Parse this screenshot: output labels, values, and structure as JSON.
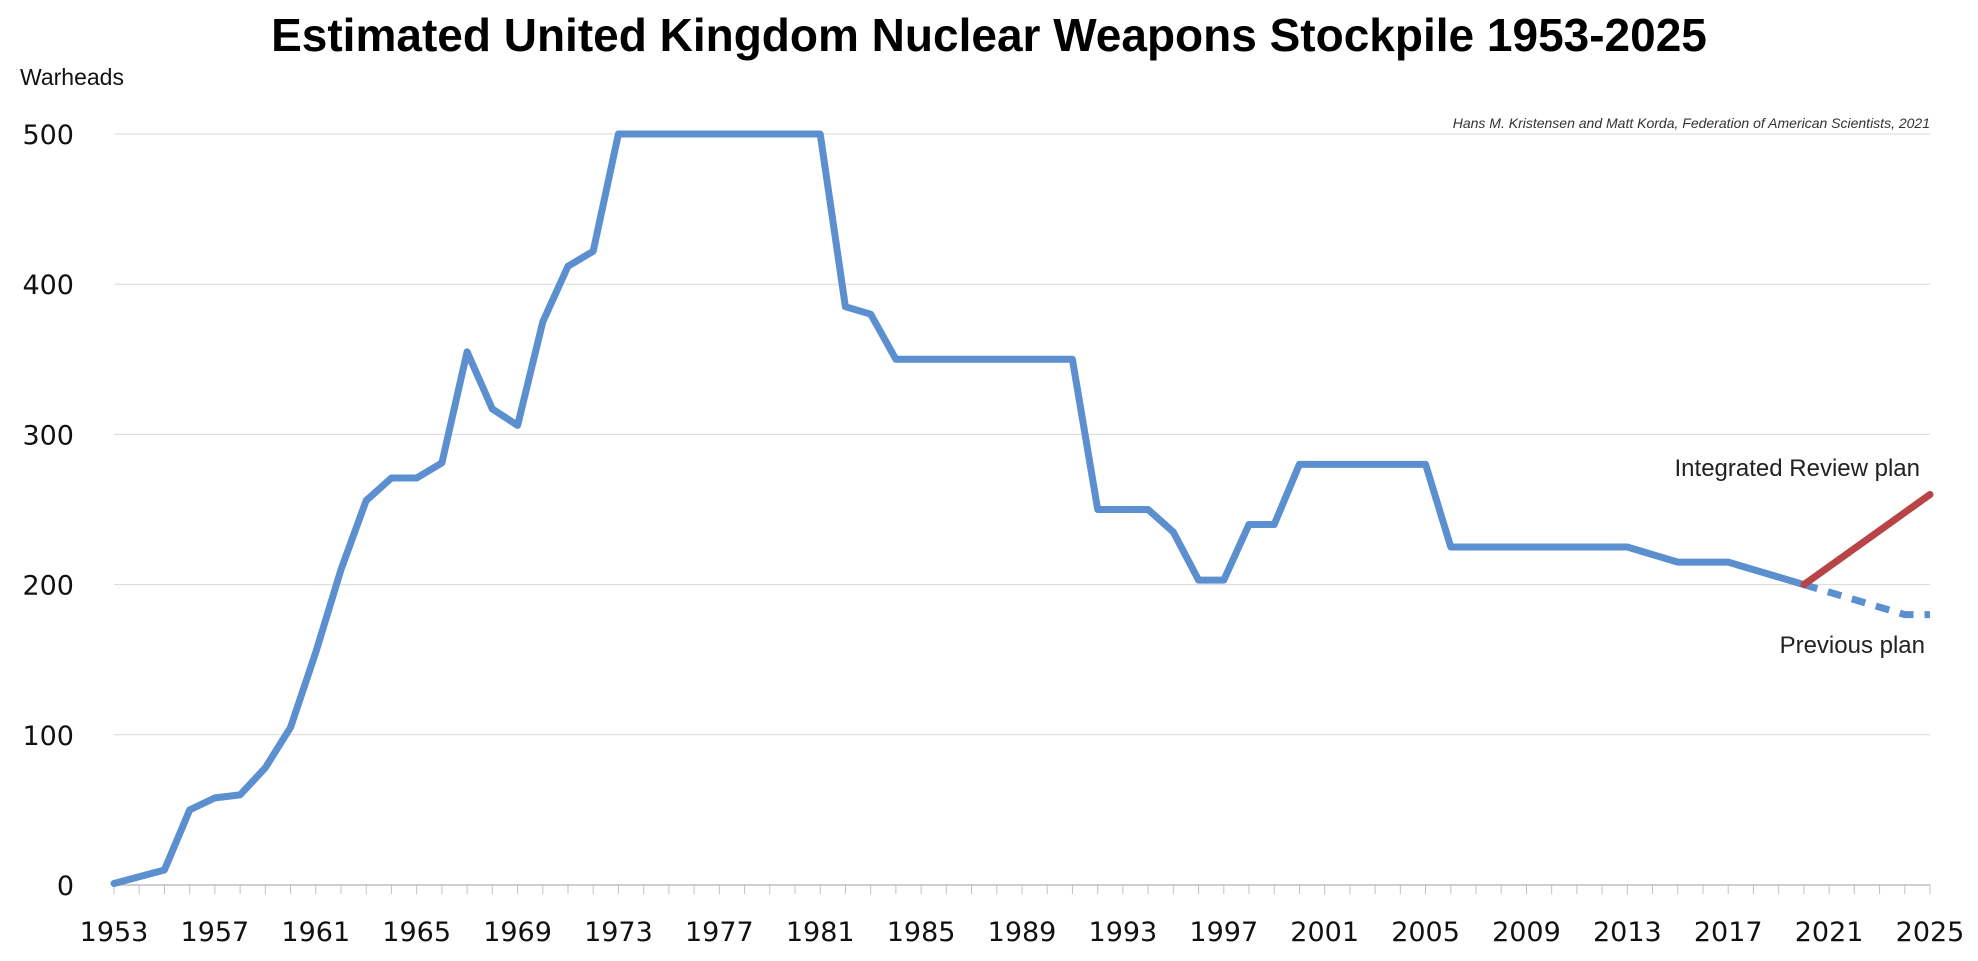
{
  "chart_data": {
    "type": "line",
    "title": "Estimated United Kingdom Nuclear Weapons Stockpile 1953-2025",
    "ylabel": "Warheads",
    "xlabel": "",
    "credit": "Hans M. Kristensen and Matt Korda, Federation of American Scientists, 2021",
    "xlim": [
      1953,
      2025
    ],
    "ylim": [
      0,
      500
    ],
    "x_ticks": [
      1953,
      1957,
      1961,
      1965,
      1969,
      1973,
      1977,
      1981,
      1985,
      1989,
      1993,
      1997,
      2001,
      2005,
      2009,
      2013,
      2017,
      2021,
      2025
    ],
    "y_ticks": [
      0,
      100,
      200,
      300,
      400,
      500
    ],
    "grid": "horizontal",
    "series": [
      {
        "color": "#5b8fd0",
        "style": "solid",
        "x": [
          1953,
          1955,
          1956,
          1957,
          1958,
          1959,
          1960,
          1961,
          1962,
          1963,
          1964,
          1965,
          1966,
          1967,
          1968,
          1969,
          1970,
          1971,
          1972,
          1973,
          1974,
          1975,
          1976,
          1977,
          1978,
          1979,
          1980,
          1981,
          1982,
          1983,
          1984,
          1985,
          1986,
          1987,
          1988,
          1989,
          1990,
          1991,
          1992,
          1993,
          1994,
          1995,
          1996,
          1997,
          1998,
          1999,
          2000,
          2001,
          2002,
          2003,
          2004,
          2005,
          2006,
          2007,
          2008,
          2009,
          2010,
          2011,
          2012,
          2013,
          2014,
          2015,
          2016,
          2017,
          2018,
          2019,
          2020
        ],
        "values": [
          1,
          10,
          50,
          58,
          60,
          78,
          105,
          155,
          210,
          256,
          271,
          271,
          281,
          355,
          317,
          306,
          375,
          412,
          422,
          500,
          500,
          500,
          500,
          500,
          500,
          500,
          500,
          500,
          385,
          380,
          350,
          350,
          350,
          350,
          350,
          350,
          350,
          350,
          250,
          250,
          250,
          235,
          203,
          203,
          240,
          240,
          280,
          280,
          280,
          280,
          280,
          280,
          225,
          225,
          225,
          225,
          225,
          225,
          225,
          225,
          220,
          215,
          215,
          215,
          210,
          205,
          200
        ]
      },
      {
        "name": "Previous plan",
        "color": "#5b8fd0",
        "style": "dashed",
        "x": [
          2020,
          2024,
          2025
        ],
        "values": [
          200,
          180,
          180
        ]
      },
      {
        "name": "Integrated Review plan",
        "color": "#b84447",
        "style": "solid",
        "x": [
          2020,
          2025
        ],
        "values": [
          200,
          260
        ]
      }
    ]
  }
}
